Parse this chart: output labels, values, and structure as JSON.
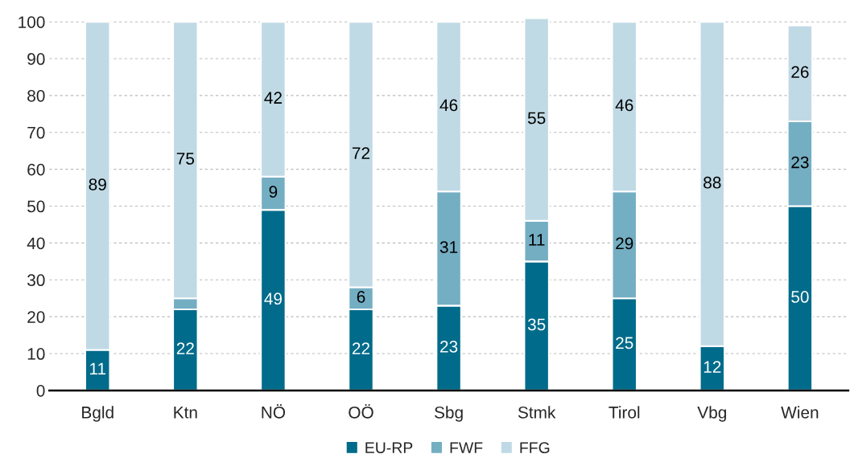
{
  "chart_data": {
    "type": "bar",
    "stacked": true,
    "categories": [
      "Bgld",
      "Ktn",
      "NÖ",
      "OÖ",
      "Sbg",
      "Stmk",
      "Tirol",
      "Vbg",
      "Wien"
    ],
    "series": [
      {
        "name": "EU-RP",
        "color": "#006b8a",
        "values": [
          11,
          22,
          49,
          22,
          23,
          35,
          25,
          12,
          50
        ],
        "value_labels": [
          "11",
          "22",
          "49",
          "22",
          "23",
          "35",
          "25",
          "12",
          "50"
        ]
      },
      {
        "name": "FWF",
        "color": "#74aec3",
        "values": [
          0,
          3,
          9,
          6,
          31,
          11,
          29,
          0,
          23
        ],
        "value_labels": [
          null,
          null,
          "9",
          "6",
          "31",
          "11",
          "29",
          null,
          "23"
        ]
      },
      {
        "name": "FFG",
        "color": "#c0dae5",
        "values": [
          89,
          75,
          42,
          72,
          46,
          55,
          46,
          88,
          26
        ],
        "value_labels": [
          "89",
          "75",
          "42",
          "72",
          "46",
          "55",
          "46",
          "88",
          "26"
        ]
      }
    ],
    "ylim": [
      0,
      101
    ],
    "yticks": [
      0,
      10,
      20,
      30,
      40,
      50,
      60,
      70,
      80,
      90,
      100
    ],
    "grid": "y",
    "legend": "bottom"
  }
}
